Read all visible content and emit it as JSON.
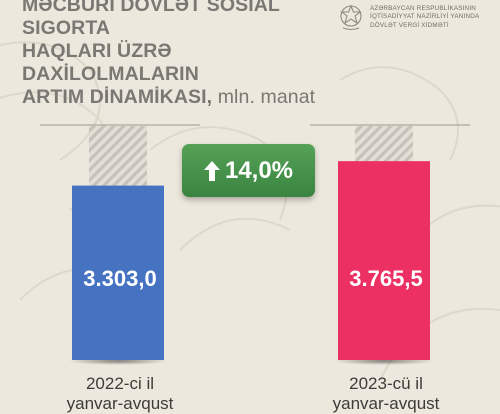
{
  "header": {
    "title_lines": [
      "MƏCBURİ DÖVLƏT SOSİAL SIGORTA",
      "HAQLARI ÜZRƏ DAXİLOLMALARIN",
      "ARTIM DİNAMİKASI,"
    ],
    "title_unit": "mln. manat"
  },
  "org": {
    "lines": [
      "AZƏRBAYCAN RESPUBLİKASININ",
      "İQTİSADİYYAT NAZİRLİYİ YANINDA",
      "DÖVLƏT VERGİ XİDMƏTİ"
    ]
  },
  "badge": {
    "text": "14,0%"
  },
  "chart_data": {
    "type": "bar",
    "title": "MƏCBURİ DÖVLƏT SOSİAL SIGORTA HAQLARI ÜZRƏ DAXİLOLMALARIN ARTIM DİNAMİKASI, mln. manat",
    "categories": [
      "2022-ci il",
      "2023-cü il"
    ],
    "category_sublabels": [
      "yanvar-avqust",
      "yanvar-avqust"
    ],
    "values": [
      3303.0,
      3765.5
    ],
    "value_labels": [
      "3.303,0",
      "3.765,5"
    ],
    "colors": [
      "#4672c2",
      "#ec3064"
    ],
    "ylim": [
      0,
      4450
    ],
    "growth_label": "14,0%",
    "grid": false,
    "legend": "none"
  }
}
